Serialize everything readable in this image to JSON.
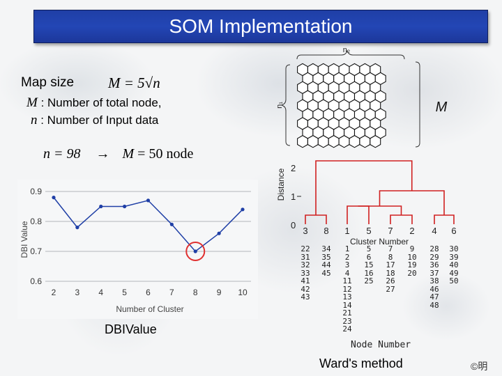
{
  "title": "SOM Implementation",
  "formula": {
    "map_size_label": "Map size",
    "equation": "M = 5√n",
    "def_m_var": "M",
    "def_m_text": ": Number of total node,",
    "def_n_var": "n",
    "def_n_text": ": Number of Input data",
    "example_lhs": "n = 98",
    "example_arrow": "→",
    "example_rhs": "M",
    "example_value": "= 50 node"
  },
  "hex_grid": {
    "label_top": "n₂",
    "label_left": "n₁",
    "label_right": "M"
  },
  "chart_data": {
    "type": "line",
    "x": [
      2,
      3,
      4,
      5,
      6,
      7,
      8,
      9,
      10
    ],
    "values": [
      0.88,
      0.78,
      0.85,
      0.85,
      0.87,
      0.79,
      0.7,
      0.76,
      0.84
    ],
    "xlabel": "Number of Cluster",
    "ylabel": "DBI Value",
    "ylim": [
      0.6,
      0.9
    ],
    "yticks": [
      "0.6",
      "0.7",
      "0.8",
      "0.9"
    ],
    "xticks": [
      "2",
      "3",
      "4",
      "5",
      "6",
      "7",
      "8",
      "9",
      "10"
    ],
    "grid": "y",
    "highlight_x": 8,
    "caption": "DBIValue",
    "series_color": "#1f3fa6",
    "highlight_color": "#e03030"
  },
  "dendrogram": {
    "ylabel": "Distance",
    "yticks": [
      "0",
      "1",
      "2"
    ],
    "xlabel": "Cluster Number",
    "cluster_numbers": [
      "3",
      "8",
      "1",
      "5",
      "7",
      "2",
      "4",
      "6"
    ],
    "node_columns": [
      [
        "22",
        "31",
        "32",
        "33",
        "41",
        "42",
        "43"
      ],
      [
        "34",
        "35",
        "44",
        "45"
      ],
      [
        "1",
        "2",
        "3",
        "4",
        "11",
        "12",
        "13",
        "14",
        "21",
        "23",
        "24"
      ],
      [
        "5",
        "6",
        "15",
        "16",
        "25"
      ],
      [
        "7",
        "8",
        "17",
        "18",
        "26",
        "27"
      ],
      [
        "9",
        "10",
        "19",
        "20"
      ],
      [
        "28",
        "29",
        "36",
        "37",
        "38",
        "46",
        "47",
        "48"
      ],
      [
        "30",
        "39",
        "40",
        "49",
        "50"
      ]
    ],
    "node_label": "Node Number",
    "caption": "Ward's method",
    "line_color": "#d02020"
  },
  "copyright": "©明"
}
